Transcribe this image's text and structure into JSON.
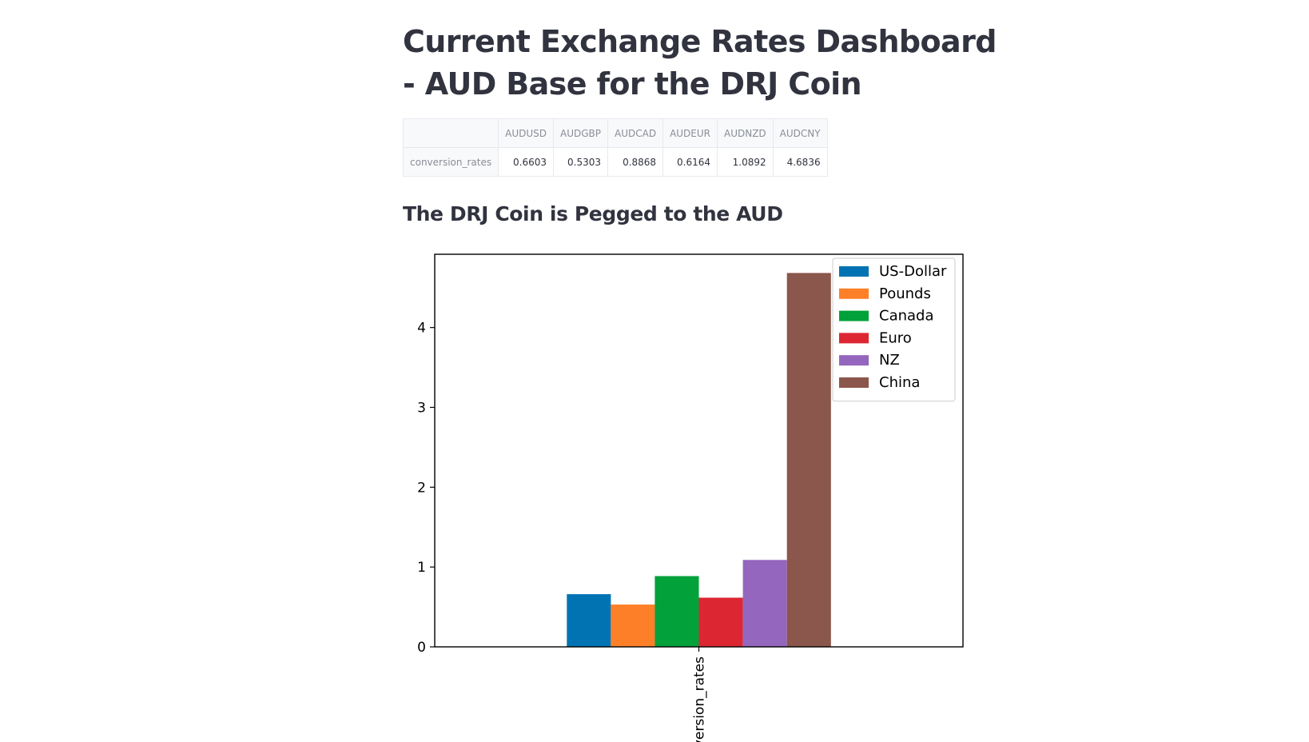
{
  "page": {
    "title": "Current Exchange Rates Dashboard - AUD Base for the DRJ Coin",
    "subtitle": "The DRJ Coin is Pegged to the AUD"
  },
  "table": {
    "corner": "",
    "columns": [
      "AUDUSD",
      "AUDGBP",
      "AUDCAD",
      "AUDEUR",
      "AUDNZD",
      "AUDCNY"
    ],
    "rows": [
      {
        "label": "conversion_rates",
        "values": [
          "0.6603",
          "0.5303",
          "0.8868",
          "0.6164",
          "1.0892",
          "4.6836"
        ]
      }
    ]
  },
  "chart_data": {
    "type": "bar",
    "categories": [
      "conversion_rates"
    ],
    "series": [
      {
        "name": "US-Dollar",
        "values": [
          0.6603
        ],
        "color": "#0173b2"
      },
      {
        "name": "Pounds",
        "values": [
          0.5303
        ],
        "color": "#fd7f28"
      },
      {
        "name": "Canada",
        "values": [
          0.8868
        ],
        "color": "#02a13a"
      },
      {
        "name": "Euro",
        "values": [
          0.6164
        ],
        "color": "#dc2631"
      },
      {
        "name": "NZ",
        "values": [
          1.0892
        ],
        "color": "#9466bd"
      },
      {
        "name": "China",
        "values": [
          4.6836
        ],
        "color": "#8b564b"
      }
    ],
    "yticks": [
      "0",
      "1",
      "2",
      "3",
      "4"
    ],
    "ylim": [
      0,
      4.918
    ],
    "xtick_label": "conversion_rates",
    "xtick_rotation": 90,
    "legend_position": "upper right",
    "grid": false,
    "title": "",
    "xlabel": "",
    "ylabel": ""
  }
}
